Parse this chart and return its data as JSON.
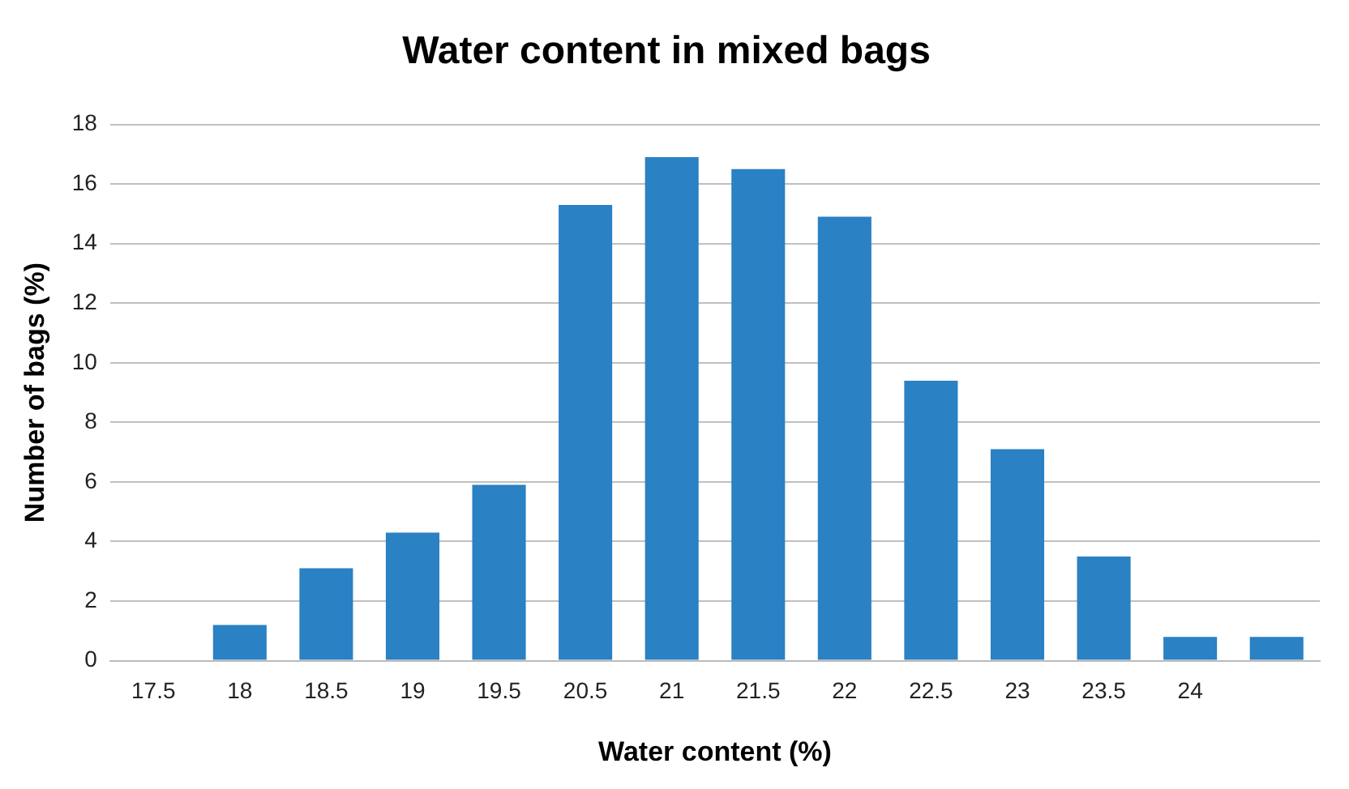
{
  "chart_data": {
    "type": "bar",
    "title": "Water content in mixed bags",
    "xlabel": "Water content (%)",
    "ylabel": "Number of bags (%)",
    "categories": [
      "17.5",
      "18",
      "18.5",
      "19",
      "19.5",
      "20.5",
      "21",
      "21.5",
      "22",
      "22.5",
      "23",
      "23.5",
      "24",
      null
    ],
    "values": [
      0,
      1.2,
      3.1,
      4.3,
      5.9,
      15.3,
      16.9,
      16.5,
      14.9,
      9.4,
      7.1,
      3.5,
      0.8,
      0.8
    ],
    "color": "#2a81c4",
    "ylim": [
      0,
      18
    ],
    "yticks": [
      0,
      2,
      4,
      6,
      8,
      10,
      12,
      14,
      16,
      18
    ],
    "grid": "y",
    "legend": false
  }
}
